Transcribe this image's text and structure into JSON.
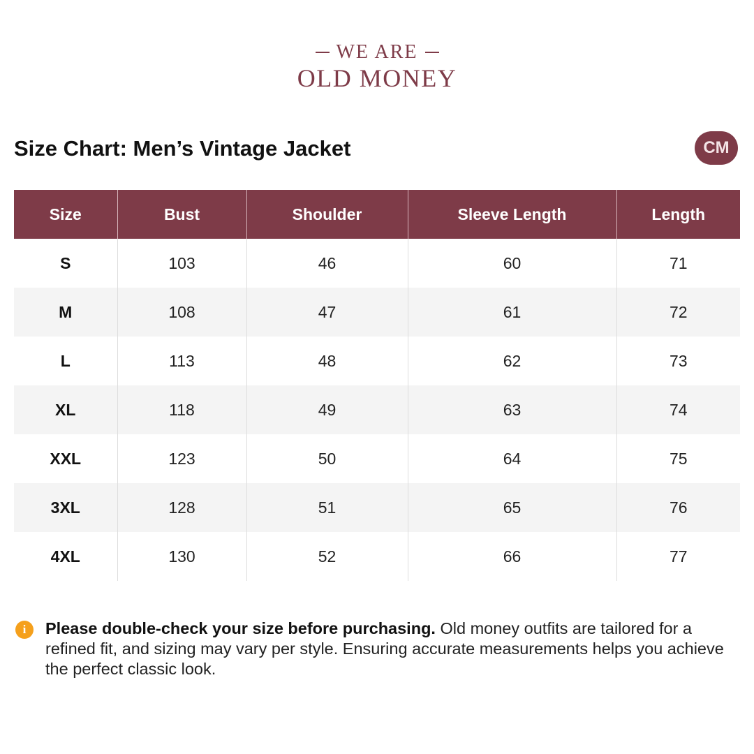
{
  "brand": {
    "line1": "WE ARE",
    "line2": "OLD MONEY"
  },
  "title": "Size Chart: Men’s Vintage Jacket",
  "unit": "CM",
  "colors": {
    "accent": "#7e3b48",
    "info": "#f5a01c",
    "row_alt": "#f4f4f4"
  },
  "table": {
    "headers": [
      "Size",
      "Bust",
      "Shoulder",
      "Sleeve Length",
      "Length"
    ],
    "rows": [
      [
        "S",
        "103",
        "46",
        "60",
        "71"
      ],
      [
        "M",
        "108",
        "47",
        "61",
        "72"
      ],
      [
        "L",
        "113",
        "48",
        "62",
        "73"
      ],
      [
        "XL",
        "118",
        "49",
        "63",
        "74"
      ],
      [
        "XXL",
        "123",
        "50",
        "64",
        "75"
      ],
      [
        "3XL",
        "128",
        "51",
        "65",
        "76"
      ],
      [
        "4XL",
        "130",
        "52",
        "66",
        "77"
      ]
    ]
  },
  "notice": {
    "icon": "info-icon",
    "bold": "Please double-check your size before purchasing.",
    "text": " Old money outfits are tailored for a refined fit, and sizing may vary per style. Ensuring accurate measurements helps you achieve the perfect classic look."
  }
}
